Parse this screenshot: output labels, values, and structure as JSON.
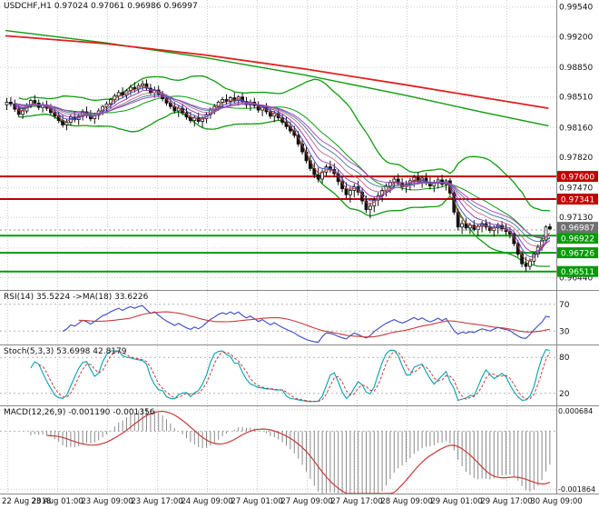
{
  "header": {
    "symbol_period": "USDCHF,H1",
    "open": "0.97024",
    "high": "0.97061",
    "low": "0.96986",
    "close": "0.96997"
  },
  "chart_data": {
    "type": "candlestick",
    "symbol": "USDCHF",
    "timeframe": "H1",
    "price_axis": {
      "min": 0.963,
      "max": 0.9962,
      "grid": [
        {
          "v": 0.9954,
          "t": "0.99540"
        },
        {
          "v": 0.992,
          "t": "0.99200"
        },
        {
          "v": 0.9885,
          "t": "0.98850"
        },
        {
          "v": 0.9851,
          "t": "0.98510"
        },
        {
          "v": 0.9816,
          "t": "0.98160"
        },
        {
          "v": 0.9782,
          "t": "0.97820"
        },
        {
          "v": 0.9747,
          "t": "0.97470"
        },
        {
          "v": 0.9713,
          "t": "0.97130"
        },
        {
          "v": 0.9678,
          "t": ""
        },
        {
          "v": 0.9644,
          "t": "0.96440"
        }
      ]
    },
    "time_axis": {
      "labels": [
        "22 Aug 2018",
        "23 Aug 01:00",
        "23 Aug 09:00",
        "23 Aug 17:00",
        "24 Aug 09:00",
        "27 Aug 01:00",
        "27 Aug 09:00",
        "27 Aug 17:00",
        "28 Aug 09:00",
        "29 Aug 01:00",
        "29 Aug 17:00",
        "30 Aug 09:00"
      ]
    },
    "levels": [
      {
        "price": 0.976,
        "label": "0.97600",
        "color": "#c00000",
        "kind": "resistance"
      },
      {
        "price": 0.97341,
        "label": "0.97341",
        "color": "#c00000",
        "kind": "resistance"
      },
      {
        "price": 0.96922,
        "label": "0.96922",
        "color": "#089a08",
        "kind": "support"
      },
      {
        "price": 0.96726,
        "label": "0.96726",
        "color": "#089a08",
        "kind": "support"
      },
      {
        "price": 0.96511,
        "label": "0.96511",
        "color": "#089a08",
        "kind": "support"
      }
    ],
    "current_price": {
      "value": 0.96987,
      "label": "0.96987",
      "color": "#707070"
    },
    "overlays": {
      "trend_mas": [
        {
          "name": "slow-ma-green",
          "color": "#0f9b0f",
          "width": 1.4,
          "points": [
            [
              0,
              0.9927
            ],
            [
              25,
              0.9913
            ],
            [
              50,
              0.9896
            ],
            [
              75,
              0.9876
            ],
            [
              100,
              0.9853
            ],
            [
              120,
              0.9833
            ],
            [
              136,
              0.9818
            ]
          ]
        },
        {
          "name": "slow-ma-red",
          "color": "#e02020",
          "width": 1.8,
          "points": [
            [
              0,
              0.9921
            ],
            [
              25,
              0.9912
            ],
            [
              50,
              0.9899
            ],
            [
              75,
              0.9883
            ],
            [
              100,
              0.9865
            ],
            [
              120,
              0.985
            ],
            [
              136,
              0.9838
            ]
          ]
        }
      ],
      "bollinger": {
        "period": 20,
        "deviation": 2,
        "color": "#0f9b0f"
      },
      "ema_ribbon": {
        "periods": [
          3,
          5,
          8,
          12,
          16,
          20
        ],
        "colors": [
          "#c03838",
          "#3848c0",
          "#8838a8",
          "#c06888",
          "#387898",
          "#a040c0"
        ]
      }
    },
    "candles": [
      [
        0.9842,
        0.985,
        0.9836,
        0.9845
      ],
      [
        0.9845,
        0.9851,
        0.984,
        0.9843
      ],
      [
        0.9843,
        0.9848,
        0.9834,
        0.9837
      ],
      [
        0.9837,
        0.9842,
        0.9828,
        0.9831
      ],
      [
        0.9831,
        0.9838,
        0.9826,
        0.9835
      ],
      [
        0.9835,
        0.9844,
        0.9832,
        0.9841
      ],
      [
        0.9841,
        0.9849,
        0.9838,
        0.9847
      ],
      [
        0.9847,
        0.9853,
        0.9841,
        0.9844
      ],
      [
        0.9844,
        0.9848,
        0.9836,
        0.9839
      ],
      [
        0.9839,
        0.9845,
        0.9833,
        0.9842
      ],
      [
        0.9842,
        0.9847,
        0.9835,
        0.9838
      ],
      [
        0.9838,
        0.9843,
        0.983,
        0.9833
      ],
      [
        0.9833,
        0.9839,
        0.9826,
        0.9829
      ],
      [
        0.9829,
        0.9834,
        0.9821,
        0.9824
      ],
      [
        0.9824,
        0.983,
        0.9816,
        0.9819
      ],
      [
        0.9819,
        0.9826,
        0.9813,
        0.9822
      ],
      [
        0.9822,
        0.9831,
        0.9818,
        0.9828
      ],
      [
        0.9828,
        0.9835,
        0.9822,
        0.9825
      ],
      [
        0.9825,
        0.9832,
        0.9819,
        0.9829
      ],
      [
        0.9829,
        0.9837,
        0.9824,
        0.9834
      ],
      [
        0.9834,
        0.984,
        0.9827,
        0.9831
      ],
      [
        0.9831,
        0.9836,
        0.9823,
        0.9826
      ],
      [
        0.9826,
        0.9833,
        0.982,
        0.983
      ],
      [
        0.983,
        0.9838,
        0.9825,
        0.9835
      ],
      [
        0.9835,
        0.9842,
        0.983,
        0.984
      ],
      [
        0.984,
        0.9846,
        0.9834,
        0.9843
      ],
      [
        0.9843,
        0.985,
        0.9838,
        0.9848
      ],
      [
        0.9848,
        0.9855,
        0.9843,
        0.9852
      ],
      [
        0.9852,
        0.9859,
        0.9847,
        0.9856
      ],
      [
        0.9856,
        0.9862,
        0.985,
        0.9853
      ],
      [
        0.9853,
        0.986,
        0.9848,
        0.9858
      ],
      [
        0.9858,
        0.9865,
        0.9853,
        0.9862
      ],
      [
        0.9862,
        0.9868,
        0.9856,
        0.986
      ],
      [
        0.986,
        0.9867,
        0.9855,
        0.9864
      ],
      [
        0.9864,
        0.987,
        0.9859,
        0.9866
      ],
      [
        0.9866,
        0.9871,
        0.9858,
        0.9861
      ],
      [
        0.9861,
        0.9866,
        0.9853,
        0.9856
      ],
      [
        0.9856,
        0.9863,
        0.985,
        0.9859
      ],
      [
        0.9859,
        0.9864,
        0.9851,
        0.9854
      ],
      [
        0.9854,
        0.9858,
        0.9846,
        0.9849
      ],
      [
        0.9849,
        0.9854,
        0.9841,
        0.9844
      ],
      [
        0.9844,
        0.985,
        0.9837,
        0.984
      ],
      [
        0.984,
        0.9845,
        0.9832,
        0.9835
      ],
      [
        0.9835,
        0.9841,
        0.9828,
        0.9838
      ],
      [
        0.9838,
        0.9843,
        0.983,
        0.9833
      ],
      [
        0.9833,
        0.9838,
        0.9825,
        0.9828
      ],
      [
        0.9828,
        0.9834,
        0.9821,
        0.9824
      ],
      [
        0.9824,
        0.983,
        0.9817,
        0.9827
      ],
      [
        0.9827,
        0.9833,
        0.982,
        0.9823
      ],
      [
        0.9823,
        0.9829,
        0.9816,
        0.9826
      ],
      [
        0.9826,
        0.9834,
        0.9821,
        0.9831
      ],
      [
        0.9831,
        0.9839,
        0.9826,
        0.9836
      ],
      [
        0.9836,
        0.9843,
        0.9831,
        0.984
      ],
      [
        0.984,
        0.9847,
        0.9835,
        0.9845
      ],
      [
        0.9845,
        0.9851,
        0.9839,
        0.9848
      ],
      [
        0.9848,
        0.9854,
        0.9842,
        0.9846
      ],
      [
        0.9846,
        0.9852,
        0.984,
        0.985
      ],
      [
        0.985,
        0.9856,
        0.9844,
        0.9847
      ],
      [
        0.9847,
        0.9853,
        0.9841,
        0.9851
      ],
      [
        0.9851,
        0.9856,
        0.9843,
        0.9846
      ],
      [
        0.9846,
        0.9851,
        0.9838,
        0.9842
      ],
      [
        0.9842,
        0.9848,
        0.9835,
        0.9845
      ],
      [
        0.9845,
        0.985,
        0.9838,
        0.9841
      ],
      [
        0.9841,
        0.9846,
        0.9833,
        0.9836
      ],
      [
        0.9836,
        0.9841,
        0.9829,
        0.9839
      ],
      [
        0.9839,
        0.9844,
        0.9831,
        0.9834
      ],
      [
        0.9834,
        0.9839,
        0.9826,
        0.9829
      ],
      [
        0.9829,
        0.9835,
        0.9822,
        0.9832
      ],
      [
        0.9832,
        0.9837,
        0.9824,
        0.9827
      ],
      [
        0.9827,
        0.9832,
        0.9819,
        0.9822
      ],
      [
        0.9822,
        0.9828,
        0.9814,
        0.9817
      ],
      [
        0.9817,
        0.9823,
        0.9809,
        0.9812
      ],
      [
        0.9812,
        0.9818,
        0.9804,
        0.9807
      ],
      [
        0.9807,
        0.9812,
        0.9794,
        0.9797
      ],
      [
        0.9797,
        0.9803,
        0.9785,
        0.9788
      ],
      [
        0.9788,
        0.9794,
        0.9775,
        0.9778
      ],
      [
        0.9778,
        0.9784,
        0.9766,
        0.9769
      ],
      [
        0.9769,
        0.9776,
        0.9758,
        0.9762
      ],
      [
        0.9762,
        0.977,
        0.9753,
        0.9757
      ],
      [
        0.9757,
        0.9768,
        0.9752,
        0.9765
      ],
      [
        0.9765,
        0.9774,
        0.976,
        0.9771
      ],
      [
        0.9771,
        0.9778,
        0.9764,
        0.9768
      ],
      [
        0.9768,
        0.9775,
        0.9759,
        0.9763
      ],
      [
        0.9763,
        0.9768,
        0.975,
        0.9754
      ],
      [
        0.9754,
        0.976,
        0.9742,
        0.9746
      ],
      [
        0.9746,
        0.9753,
        0.9735,
        0.9739
      ],
      [
        0.9739,
        0.9748,
        0.973,
        0.9744
      ],
      [
        0.9744,
        0.9752,
        0.9736,
        0.9748
      ],
      [
        0.9748,
        0.9755,
        0.9738,
        0.9742
      ],
      [
        0.9742,
        0.9747,
        0.9728,
        0.9732
      ],
      [
        0.9732,
        0.9738,
        0.9718,
        0.9722
      ],
      [
        0.9722,
        0.973,
        0.9712,
        0.9726
      ],
      [
        0.9726,
        0.9736,
        0.9719,
        0.9733
      ],
      [
        0.9733,
        0.9742,
        0.9726,
        0.9738
      ],
      [
        0.9738,
        0.9747,
        0.9731,
        0.9744
      ],
      [
        0.9744,
        0.9752,
        0.9737,
        0.9749
      ],
      [
        0.9749,
        0.9756,
        0.9741,
        0.9753
      ],
      [
        0.9753,
        0.976,
        0.9746,
        0.9757
      ],
      [
        0.9757,
        0.9763,
        0.9749,
        0.9752
      ],
      [
        0.9752,
        0.9758,
        0.9744,
        0.9748
      ],
      [
        0.9748,
        0.9755,
        0.9741,
        0.9751
      ],
      [
        0.9751,
        0.9758,
        0.9744,
        0.9755
      ],
      [
        0.9755,
        0.9762,
        0.9748,
        0.9759
      ],
      [
        0.9759,
        0.9765,
        0.9751,
        0.9754
      ],
      [
        0.9754,
        0.9761,
        0.9747,
        0.9758
      ],
      [
        0.9758,
        0.9764,
        0.975,
        0.9753
      ],
      [
        0.9753,
        0.9759,
        0.9745,
        0.9749
      ],
      [
        0.9749,
        0.9756,
        0.9742,
        0.9752
      ],
      [
        0.9752,
        0.9759,
        0.9746,
        0.9756
      ],
      [
        0.9756,
        0.9762,
        0.9748,
        0.9751
      ],
      [
        0.9751,
        0.9757,
        0.9744,
        0.9755
      ],
      [
        0.9755,
        0.9758,
        0.9738,
        0.9741
      ],
      [
        0.9741,
        0.9744,
        0.9716,
        0.9719
      ],
      [
        0.9719,
        0.9723,
        0.9698,
        0.9702
      ],
      [
        0.9702,
        0.971,
        0.9694,
        0.9706
      ],
      [
        0.9706,
        0.9712,
        0.9698,
        0.9701
      ],
      [
        0.9701,
        0.9707,
        0.9694,
        0.9704
      ],
      [
        0.9704,
        0.971,
        0.9697,
        0.9699
      ],
      [
        0.9699,
        0.9705,
        0.9692,
        0.9703
      ],
      [
        0.9703,
        0.9709,
        0.9696,
        0.9706
      ],
      [
        0.9706,
        0.9711,
        0.9699,
        0.9702
      ],
      [
        0.9702,
        0.9708,
        0.9695,
        0.9698
      ],
      [
        0.9698,
        0.9704,
        0.9691,
        0.9701
      ],
      [
        0.9701,
        0.9707,
        0.9694,
        0.9704
      ],
      [
        0.9704,
        0.9709,
        0.9697,
        0.97
      ],
      [
        0.97,
        0.9706,
        0.9693,
        0.9697
      ],
      [
        0.9697,
        0.9702,
        0.9689,
        0.9694
      ],
      [
        0.9694,
        0.9697,
        0.968,
        0.9683
      ],
      [
        0.9683,
        0.9687,
        0.9668,
        0.9671
      ],
      [
        0.9671,
        0.9675,
        0.9656,
        0.966
      ],
      [
        0.966,
        0.9668,
        0.9651,
        0.9657
      ],
      [
        0.9657,
        0.9666,
        0.9653,
        0.9663
      ],
      [
        0.9663,
        0.9674,
        0.9659,
        0.9671
      ],
      [
        0.9671,
        0.9682,
        0.9667,
        0.9679
      ],
      [
        0.9679,
        0.969,
        0.9675,
        0.9687
      ],
      [
        0.9687,
        0.9704,
        0.9683,
        0.9702
      ],
      [
        0.97024,
        0.97061,
        0.96986,
        0.96997
      ]
    ],
    "indicators": {
      "rsi": {
        "label": "RSI(14) 35.5224 ->MA(18) 33.6226",
        "period": 14,
        "ma_period": 18,
        "value": 35.5224,
        "ma_value": 33.6226,
        "levels": [
          70,
          30
        ],
        "range": [
          10,
          90
        ],
        "color": "#3a48c8",
        "ma_color": "#c83a3a"
      },
      "stoch": {
        "label": "Stoch(5,3,3) 53.6998 42.8179",
        "k_period": 5,
        "d_period": 3,
        "slowing": 3,
        "value": 53.6998,
        "signal_value": 42.8179,
        "levels": [
          80,
          20
        ],
        "range": [
          0,
          100
        ],
        "color": "#04a0b0",
        "signal_color": "#c83a3a"
      },
      "macd": {
        "label": "MACD(12,26,9) -0.001190 -0.001356",
        "fast": 12,
        "slow": 26,
        "signal": 9,
        "value": -0.00119,
        "signal_value": -0.001356,
        "axis": [
          {
            "v": 0.000684,
            "t": "0.000684"
          },
          {
            "v": -0.001864,
            "t": "-0.001864"
          }
        ],
        "range": [
          -0.002,
          0.0008
        ],
        "histogram_color": "#8a8a8a",
        "signal_color": "#c83a3a"
      }
    }
  }
}
